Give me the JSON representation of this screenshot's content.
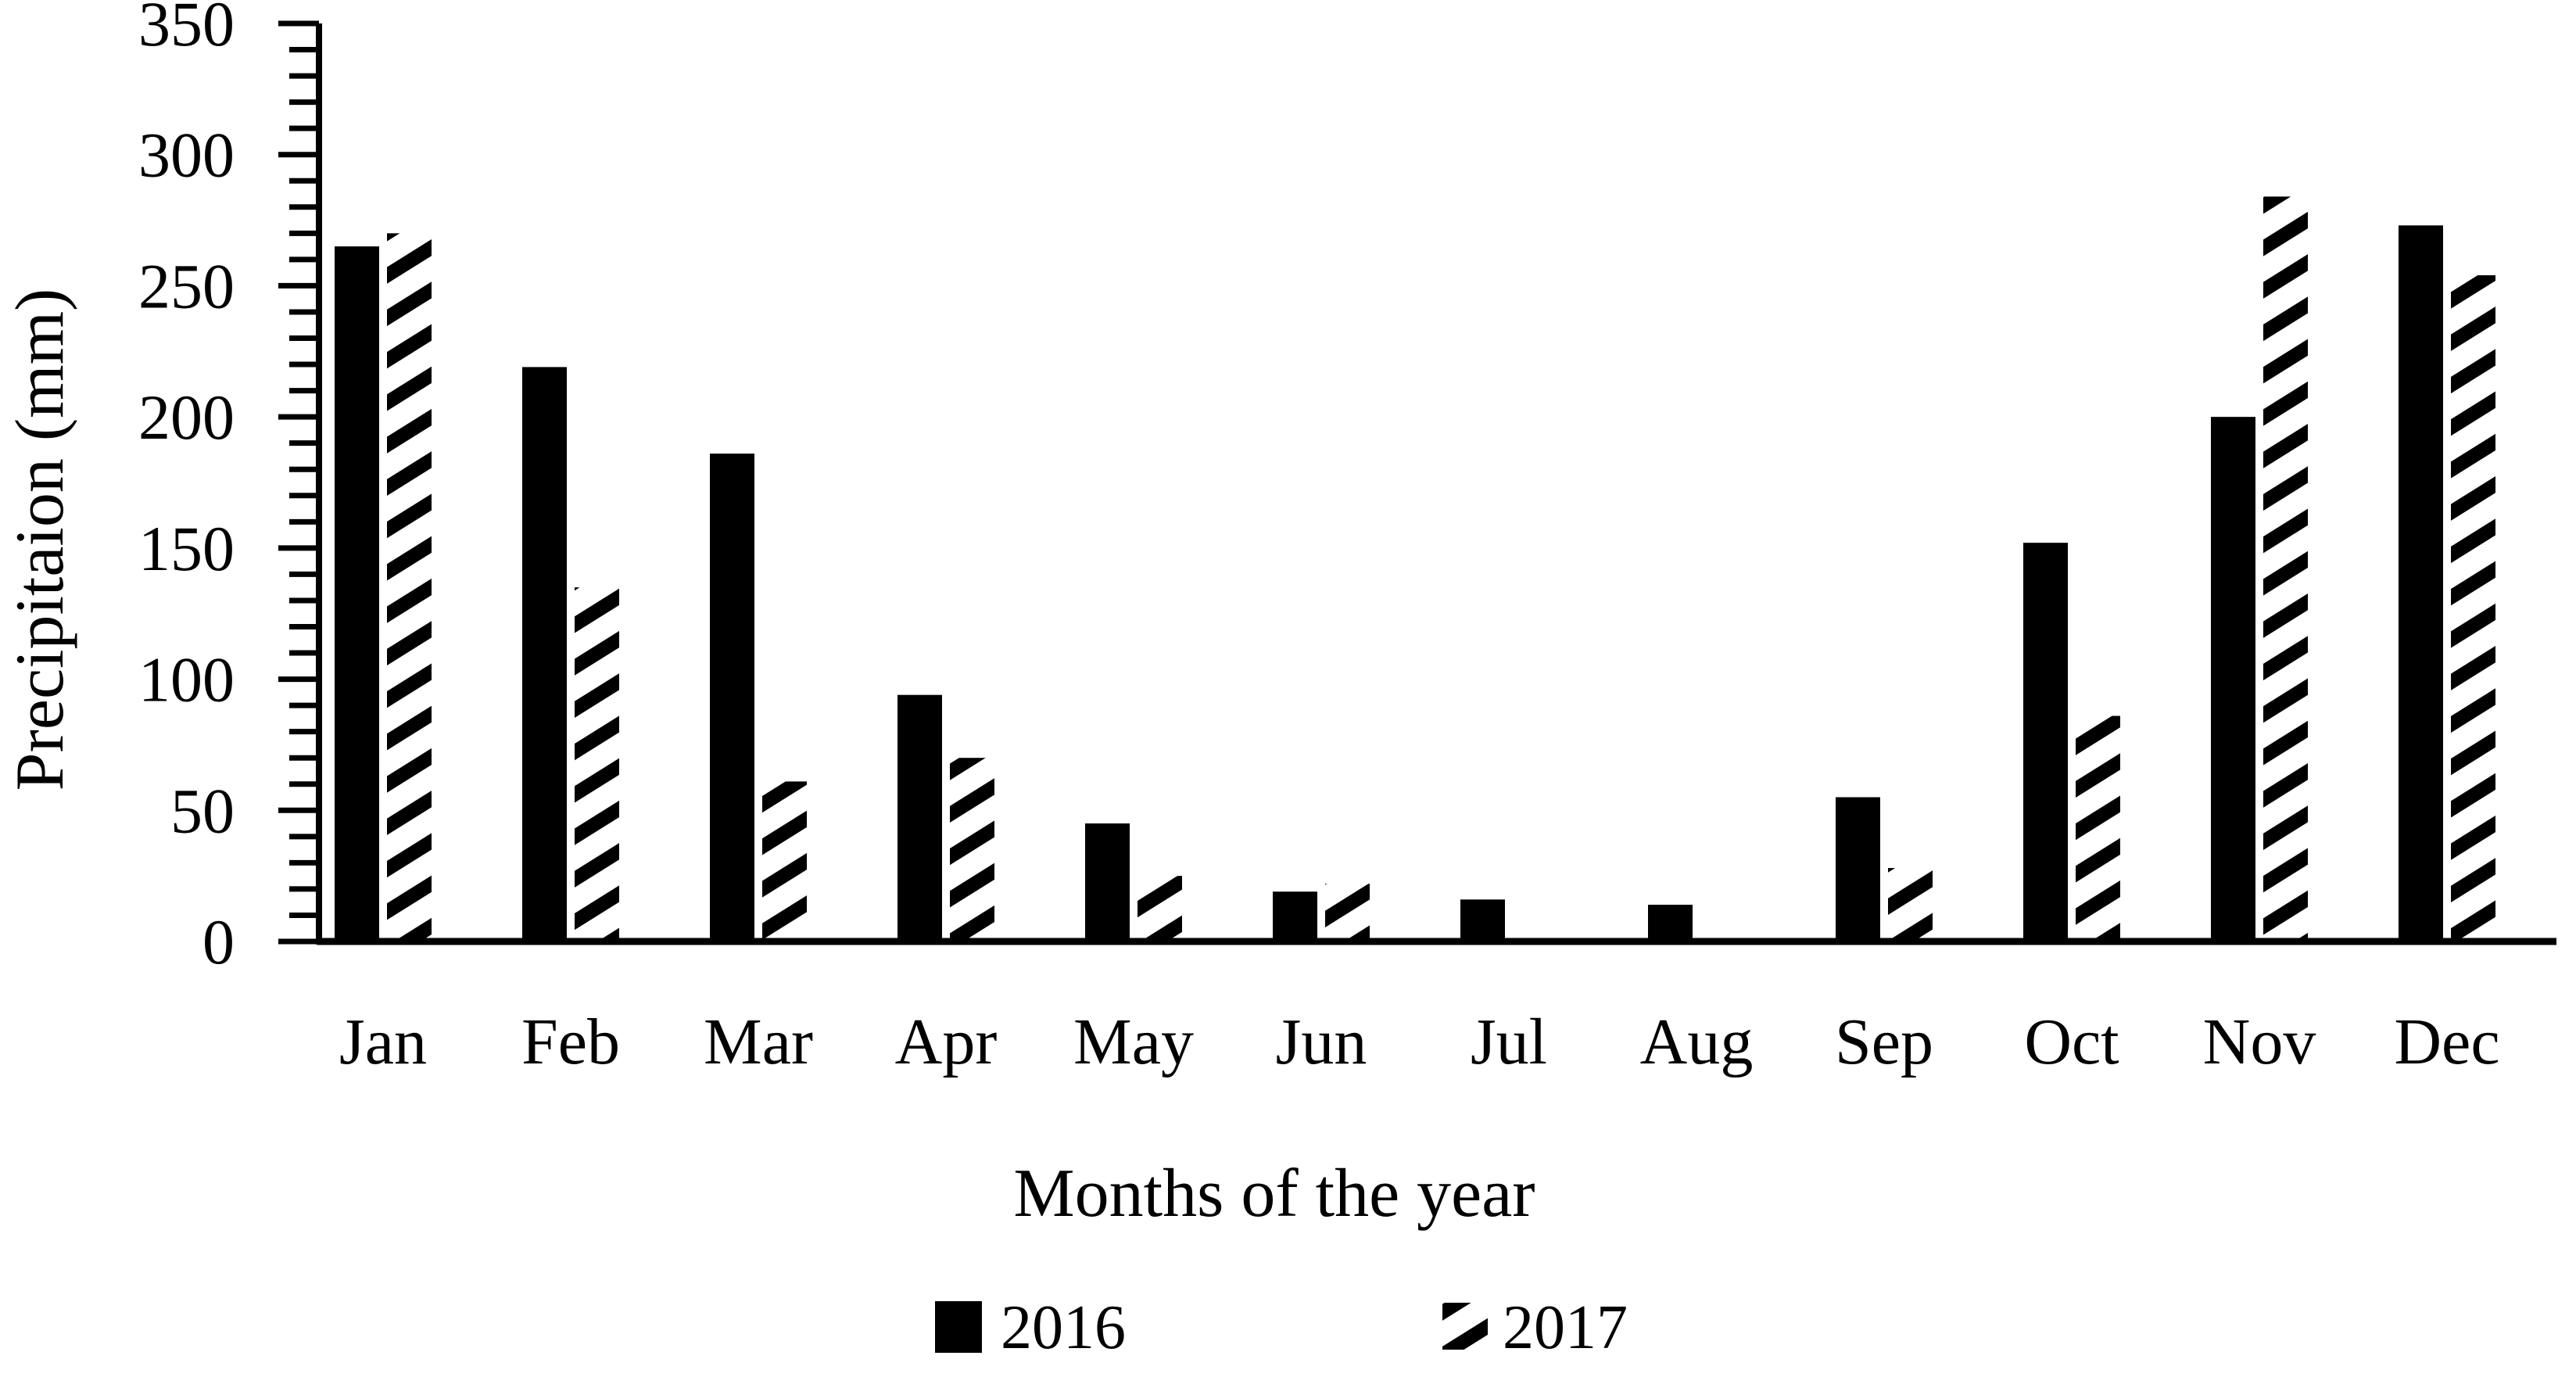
{
  "chart_data": {
    "type": "bar",
    "title": "",
    "categories": [
      "Jan",
      "Feb",
      "Mar",
      "Apr",
      "May",
      "Jun",
      "Jul",
      "Aug",
      "Sep",
      "Oct",
      "Nov",
      "Dec"
    ],
    "series": [
      {
        "name": "2016",
        "style": "solid",
        "values": [
          265,
          219,
          186,
          94,
          45,
          19,
          16,
          14,
          55,
          152,
          200,
          273
        ]
      },
      {
        "name": "2017",
        "style": "hatched",
        "values": [
          270,
          135,
          61,
          70,
          25,
          22,
          0,
          0,
          28,
          86,
          284,
          254
        ]
      }
    ],
    "xlabel": "Months of the year",
    "ylabel": "Precipitaion (mm)",
    "ylim": [
      0,
      350
    ],
    "y_tick_step": 50,
    "y_minor_tick_step": 10,
    "y_tick_labels": [
      "0",
      "50",
      "100",
      "150",
      "200",
      "250",
      "300",
      "350"
    ],
    "legend": [
      {
        "label": "2016",
        "swatch": "solid-black-square"
      },
      {
        "label": "2017",
        "swatch": "diagonal-hatch-square"
      }
    ],
    "legend_position": "bottom-center",
    "grid": false,
    "bar_color": "#000000",
    "background_color": "#ffffff",
    "hatch_angle_deg": -32
  }
}
